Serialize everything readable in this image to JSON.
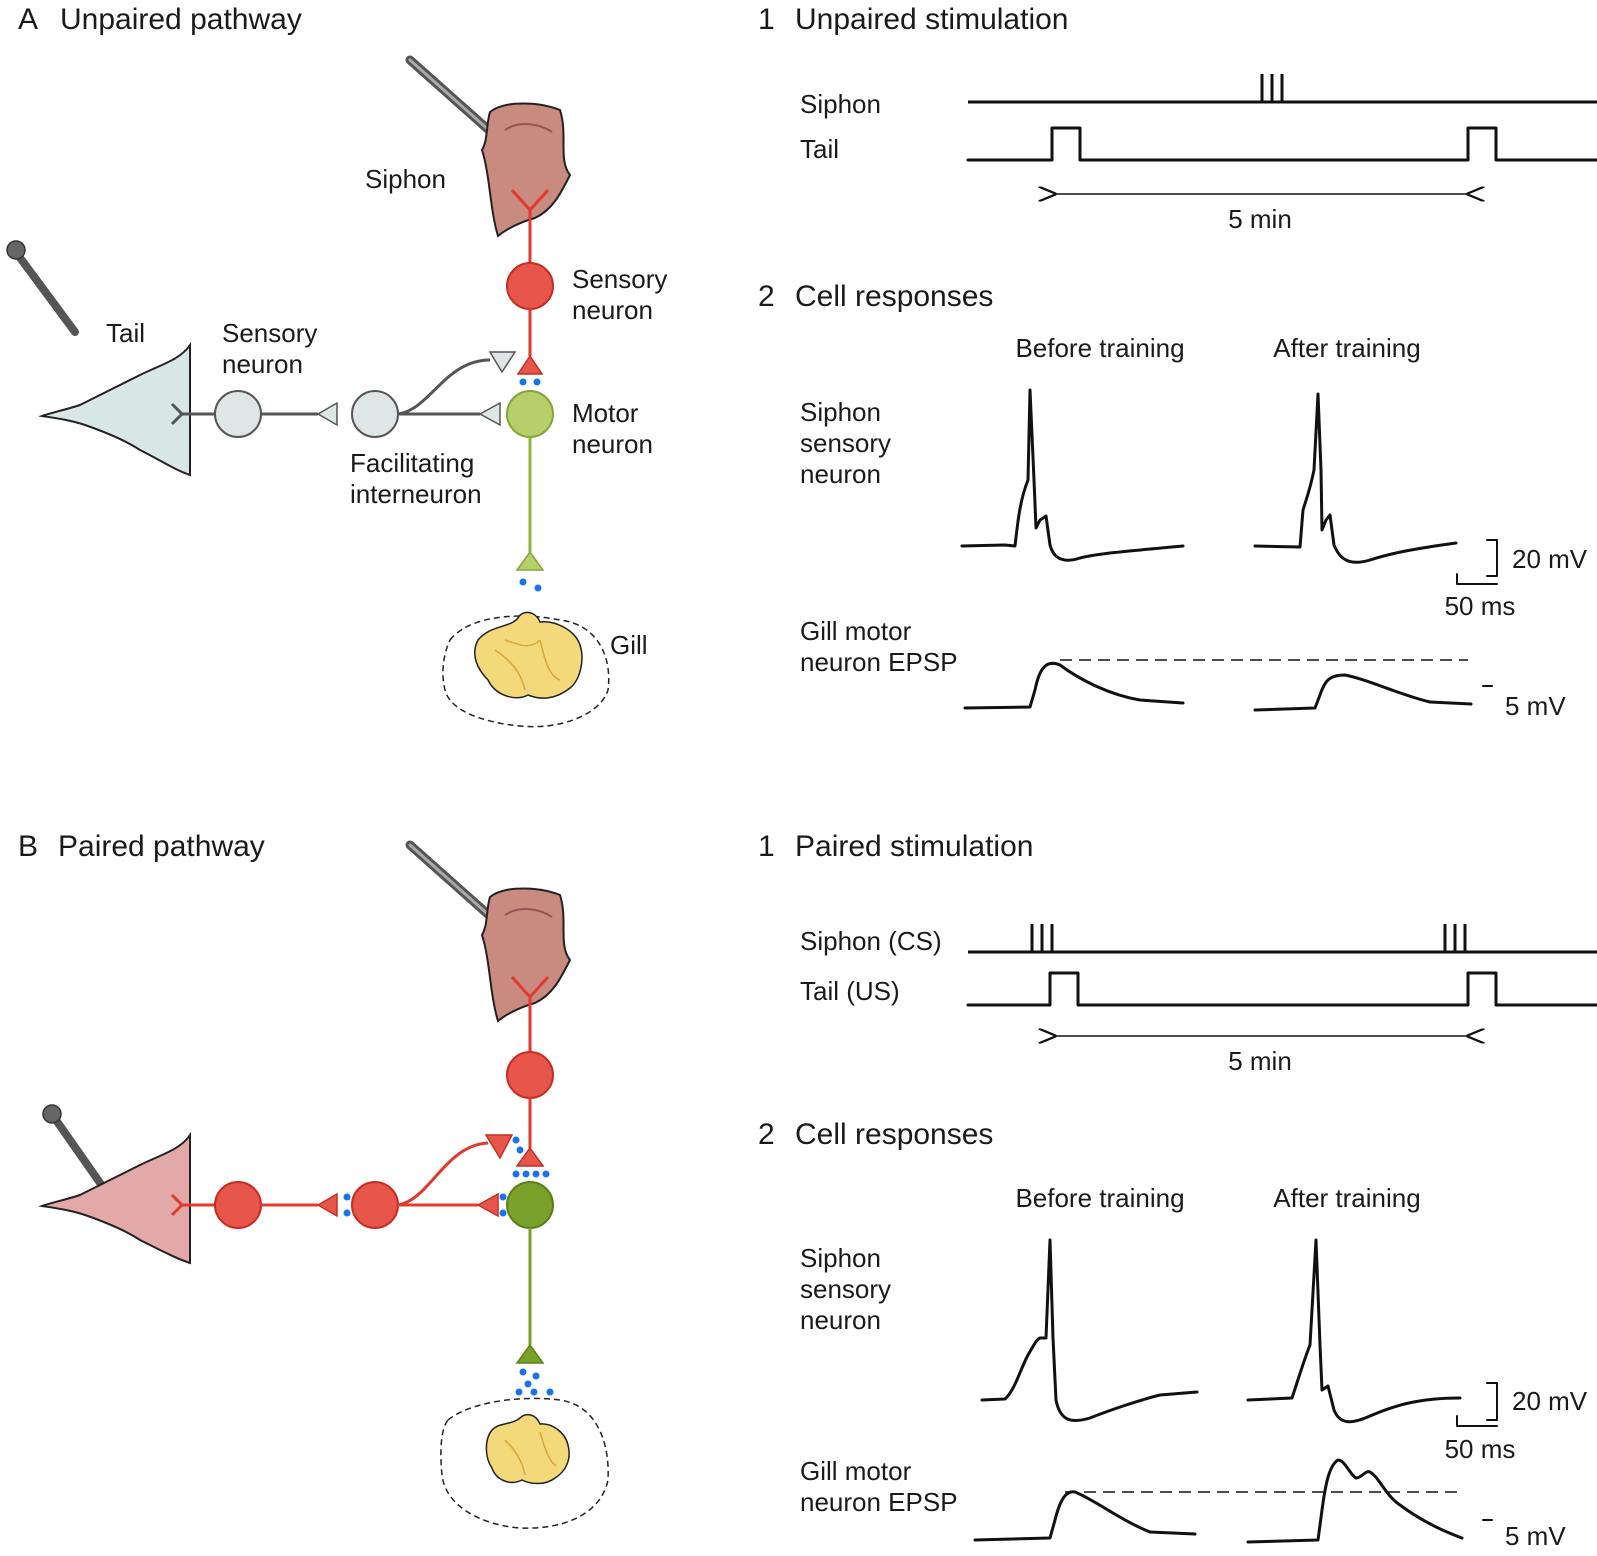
{
  "panel_a": {
    "letter": "A",
    "title": "Unpaired pathway",
    "labels": {
      "siphon": "Siphon",
      "tail": "Tail",
      "sensory_top": "Sensory",
      "sensory_bottom": "neuron",
      "tail_sensory_top": "Sensory",
      "tail_sensory_bottom": "neuron",
      "motor_top": "Motor",
      "motor_bottom": "neuron",
      "interneuron_top": "Facilitating",
      "interneuron_bottom": "interneuron",
      "gill": "Gill"
    },
    "stimulation": {
      "number": "1",
      "title": "Unpaired stimulation",
      "siphon_label": "Siphon",
      "tail_label": "Tail",
      "interval": "5 min"
    },
    "responses": {
      "number": "2",
      "title": "Cell responses",
      "before": "Before training",
      "after": "After training",
      "sensory_l1": "Siphon",
      "sensory_l2": "sensory",
      "sensory_l3": "neuron",
      "motor_l1": "Gill motor",
      "motor_l2": "neuron EPSP",
      "scale_mv": "20 mV",
      "scale_ms": "50 ms",
      "scale_small": "5 mV"
    }
  },
  "panel_b": {
    "letter": "B",
    "title": "Paired pathway",
    "stimulation": {
      "number": "1",
      "title": "Paired stimulation",
      "siphon_label": "Siphon (CS)",
      "tail_label": "Tail (US)",
      "interval": "5 min"
    },
    "responses": {
      "number": "2",
      "title": "Cell responses",
      "before": "Before training",
      "after": "After training",
      "sensory_l1": "Siphon",
      "sensory_l2": "sensory",
      "sensory_l3": "neuron",
      "motor_l1": "Gill motor",
      "motor_l2": "neuron EPSP",
      "scale_mv": "20 mV",
      "scale_ms": "50 ms",
      "scale_small": "5 mV"
    }
  },
  "colors": {
    "sensory_neuron": "#e8554a",
    "facilitating_inactive": "#dfe6e6",
    "motor_a": "#b5cf6b",
    "motor_b": "#7aa22a",
    "siphon_tissue": "#c98a80",
    "tail_tissue_a": "#d8e6e6",
    "tail_tissue_b": "#e3a9a8",
    "gill": "#f3d97a",
    "transmitter": "#1a73e8"
  }
}
